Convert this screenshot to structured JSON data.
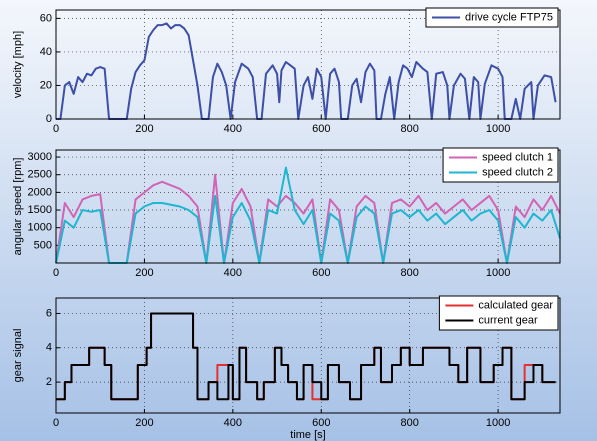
{
  "chart_data": [
    {
      "type": "line",
      "ylabel": "velocity [mph]",
      "xlim": [
        0,
        1140
      ],
      "ylim": [
        0,
        65
      ],
      "xticks": [
        0,
        200,
        400,
        600,
        800,
        1000
      ],
      "yticks": [
        0,
        20,
        40,
        60
      ],
      "grid": true,
      "legend": "upper right",
      "x": [
        0,
        10,
        20,
        30,
        40,
        50,
        60,
        70,
        80,
        90,
        100,
        110,
        120,
        160,
        170,
        180,
        190,
        200,
        210,
        220,
        230,
        240,
        250,
        260,
        270,
        280,
        290,
        300,
        310,
        320,
        330,
        345,
        355,
        365,
        375,
        385,
        395,
        405,
        420,
        435,
        445,
        455,
        465,
        475,
        490,
        500,
        505,
        510,
        520,
        530,
        540,
        548,
        560,
        570,
        580,
        590,
        600,
        610,
        620,
        630,
        640,
        645,
        660,
        670,
        680,
        690,
        700,
        710,
        720,
        725,
        735,
        745,
        755,
        765,
        775,
        785,
        795,
        805,
        815,
        830,
        840,
        850,
        860,
        875,
        885,
        890,
        900,
        915,
        925,
        935,
        945,
        955,
        960,
        970,
        985,
        1000,
        1010,
        1015,
        1030,
        1040,
        1050,
        1060,
        1075,
        1080,
        1090,
        1105,
        1120,
        1130
      ],
      "series": [
        {
          "name": "drive cycle FTP75",
          "color": "#3d4fa6",
          "values": [
            0,
            0,
            20,
            22,
            15,
            25,
            22,
            27,
            26,
            30,
            31,
            30,
            0,
            0,
            18,
            28,
            32,
            35,
            49,
            53,
            56,
            56,
            57,
            54,
            56,
            56,
            54,
            50,
            35,
            20,
            0,
            0,
            25,
            33,
            28,
            20,
            0,
            22,
            33,
            30,
            25,
            0,
            0,
            27,
            32,
            27,
            10,
            29,
            34,
            32,
            30,
            0,
            20,
            25,
            12,
            30,
            25,
            0,
            27,
            30,
            22,
            0,
            0,
            20,
            24,
            10,
            28,
            33,
            29,
            0,
            0,
            15,
            25,
            0,
            22,
            32,
            30,
            25,
            34,
            30,
            28,
            0,
            27,
            28,
            20,
            0,
            20,
            27,
            24,
            0,
            25,
            22,
            0,
            21,
            32,
            30,
            25,
            0,
            0,
            12,
            0,
            18,
            22,
            0,
            20,
            26,
            25,
            10
          ]
        }
      ]
    },
    {
      "type": "line",
      "ylabel": "angular speed [rpm]",
      "xlim": [
        0,
        1140
      ],
      "ylim": [
        0,
        3200
      ],
      "xticks": [
        0,
        200,
        400,
        600,
        800,
        1000
      ],
      "yticks": [
        500,
        1000,
        1500,
        2000,
        2500,
        3000
      ],
      "grid": true,
      "legend": "upper right",
      "x": [
        0,
        20,
        40,
        60,
        80,
        100,
        120,
        140,
        160,
        180,
        200,
        220,
        240,
        260,
        280,
        300,
        320,
        340,
        360,
        380,
        400,
        420,
        440,
        460,
        480,
        500,
        520,
        540,
        560,
        580,
        600,
        620,
        640,
        660,
        680,
        700,
        720,
        740,
        760,
        780,
        800,
        820,
        840,
        860,
        880,
        900,
        920,
        940,
        960,
        980,
        1000,
        1020,
        1040,
        1060,
        1080,
        1100,
        1120,
        1140
      ],
      "series": [
        {
          "name": "speed clutch 1",
          "color": "#d164b4",
          "values": [
            0,
            1700,
            1300,
            1800,
            1900,
            1950,
            0,
            0,
            0,
            1800,
            2000,
            2200,
            2300,
            2200,
            2100,
            1900,
            1600,
            0,
            2500,
            0,
            1700,
            2100,
            1600,
            0,
            1800,
            1600,
            1900,
            1700,
            1400,
            1800,
            0,
            1800,
            1500,
            0,
            1600,
            1900,
            1700,
            0,
            1700,
            1800,
            1600,
            1900,
            1500,
            1700,
            1400,
            1600,
            1800,
            1500,
            1700,
            1900,
            1500,
            0,
            1600,
            1300,
            1800,
            1500,
            1900,
            1400
          ]
        },
        {
          "name": "speed clutch 2",
          "color": "#1fb6cf",
          "values": [
            0,
            1200,
            1000,
            1500,
            1450,
            1500,
            0,
            0,
            0,
            1400,
            1600,
            1700,
            1700,
            1650,
            1600,
            1500,
            1300,
            0,
            1900,
            0,
            1300,
            1700,
            1200,
            0,
            1500,
            1400,
            2700,
            1500,
            1100,
            1500,
            0,
            1400,
            1200,
            0,
            1300,
            1600,
            1400,
            0,
            1400,
            1500,
            1300,
            1500,
            1200,
            1400,
            1100,
            1300,
            1500,
            1200,
            1400,
            1500,
            1200,
            0,
            1300,
            1000,
            1400,
            1200,
            1500,
            700
          ]
        }
      ]
    },
    {
      "type": "line",
      "step": true,
      "ylabel": "gear signal",
      "xlabel": "time [s]",
      "xlim": [
        0,
        1140
      ],
      "ylim": [
        0.2,
        6.9
      ],
      "xticks": [
        0,
        200,
        400,
        600,
        800,
        1000
      ],
      "yticks": [
        2,
        4,
        6
      ],
      "grid": true,
      "legend": "upper right",
      "x": [
        0,
        20,
        35,
        75,
        110,
        125,
        160,
        185,
        205,
        215,
        310,
        320,
        345,
        365,
        390,
        400,
        415,
        430,
        455,
        470,
        495,
        510,
        525,
        545,
        560,
        580,
        600,
        615,
        640,
        665,
        690,
        720,
        735,
        760,
        780,
        800,
        830,
        860,
        890,
        910,
        930,
        960,
        990,
        1010,
        1030,
        1060,
        1080,
        1100,
        1130
      ],
      "series": [
        {
          "name": "calculated gear",
          "color": "#e3312f",
          "values": [
            1,
            2,
            3,
            4,
            3,
            1,
            1,
            3,
            4,
            6,
            4,
            1,
            2,
            3,
            3,
            1,
            4,
            2,
            1,
            2,
            4,
            3,
            2,
            1,
            3,
            1,
            1,
            3,
            2,
            1,
            3,
            4,
            2,
            3,
            4,
            3,
            4,
            4,
            3,
            2,
            4,
            2,
            3,
            4,
            1,
            3,
            3,
            2,
            2
          ]
        },
        {
          "name": "current gear",
          "color": "#000000",
          "values": [
            1,
            2,
            3,
            4,
            3,
            1,
            1,
            3,
            4,
            6,
            4,
            1,
            2,
            1,
            3,
            1,
            4,
            2,
            1,
            2,
            4,
            3,
            2,
            1,
            3,
            2,
            1,
            3,
            2,
            1,
            3,
            4,
            2,
            3,
            4,
            3,
            4,
            4,
            3,
            2,
            4,
            2,
            3,
            4,
            1,
            2,
            3,
            2,
            2
          ]
        }
      ]
    }
  ]
}
